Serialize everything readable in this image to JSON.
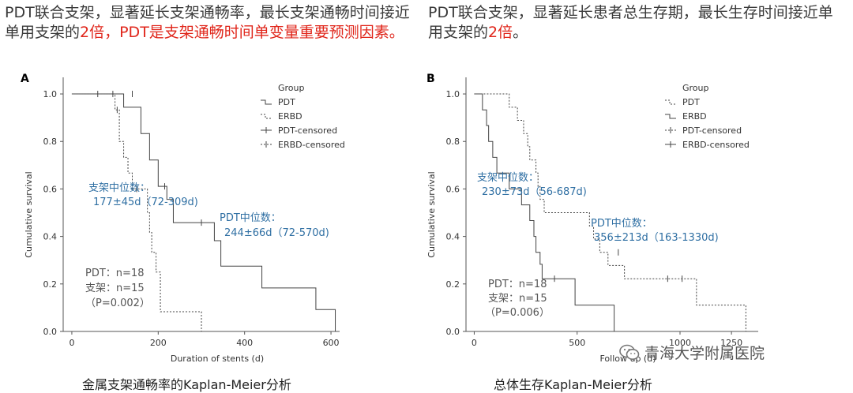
{
  "headline_left": {
    "part1": "PDT联合支架，显著延长支架通畅率，最长支架通畅时间接近单用支架的",
    "emph1": "2倍，PDT是支架通畅时间单变量重要预测因素。"
  },
  "headline_right": {
    "part1": "PDT联合支架，显著延长患者总生存期，最长生存时间接近单用支架的",
    "emph1": "2倍",
    "part2": "。"
  },
  "caption_left": "金属支架通畅率的Kaplan-Meier分析",
  "caption_right": "总体生存Kaplan-Meier分析",
  "watermark": "青海大学附属医院",
  "colors": {
    "red": "#e0261b",
    "annotation_blue": "#2f6fa3",
    "axis": "#555555"
  },
  "chart_data": [
    {
      "type": "line",
      "panel_label": "A",
      "xlabel": "Duration of stents (d)",
      "ylabel": "Cumulative survival",
      "xlim": [
        -20,
        620
      ],
      "ylim": [
        0,
        1.05
      ],
      "xticks": [
        0,
        200,
        400,
        600
      ],
      "yticks": [
        0.0,
        0.2,
        0.4,
        0.6,
        0.8,
        1.0
      ],
      "legend_title": "Group",
      "legend": [
        "PDT",
        "ERBD",
        "PDT-censored",
        "ERBD-censored"
      ],
      "series": [
        {
          "name": "PDT",
          "style": "solid",
          "steps": [
            [
              0,
              1.0
            ],
            [
              120,
              1.0
            ],
            [
              120,
              0.944
            ],
            [
              160,
              0.944
            ],
            [
              160,
              0.833
            ],
            [
              180,
              0.833
            ],
            [
              180,
              0.722
            ],
            [
              200,
              0.722
            ],
            [
              200,
              0.611
            ],
            [
              220,
              0.611
            ],
            [
              220,
              0.556
            ],
            [
              235,
              0.556
            ],
            [
              235,
              0.458
            ],
            [
              330,
              0.458
            ],
            [
              330,
              0.382
            ],
            [
              345,
              0.382
            ],
            [
              345,
              0.275
            ],
            [
              440,
              0.275
            ],
            [
              440,
              0.183
            ],
            [
              565,
              0.183
            ],
            [
              565,
              0.092
            ],
            [
              610,
              0.092
            ],
            [
              610,
              0.0
            ]
          ],
          "censored": [
            [
              60,
              1.0
            ],
            [
              95,
              1.0
            ],
            [
              140,
              1.0
            ],
            [
              215,
              0.611
            ],
            [
              300,
              0.458
            ]
          ]
        },
        {
          "name": "ERBD",
          "style": "dotted",
          "steps": [
            [
              0,
              1.0
            ],
            [
              100,
              1.0
            ],
            [
              100,
              0.933
            ],
            [
              110,
              0.933
            ],
            [
              110,
              0.8
            ],
            [
              120,
              0.8
            ],
            [
              120,
              0.733
            ],
            [
              130,
              0.733
            ],
            [
              130,
              0.667
            ],
            [
              140,
              0.667
            ],
            [
              140,
              0.6
            ],
            [
              175,
              0.6
            ],
            [
              175,
              0.5
            ],
            [
              180,
              0.5
            ],
            [
              180,
              0.417
            ],
            [
              185,
              0.417
            ],
            [
              185,
              0.333
            ],
            [
              195,
              0.333
            ],
            [
              195,
              0.25
            ],
            [
              205,
              0.25
            ],
            [
              205,
              0.083
            ],
            [
              300,
              0.083
            ],
            [
              300,
              0.0
            ]
          ],
          "censored": [
            [
              105,
              0.933
            ],
            [
              150,
              0.6
            ]
          ]
        }
      ],
      "annotations": {
        "erbd_median_title": "支架中位数：",
        "erbd_median_value": "177±45d（72-309d)",
        "pdt_median_title": "PDT中位数：",
        "pdt_median_value": "244±66d（72-570d)",
        "n_pdt": "PDT：n=18",
        "n_stent": "支架：n=15",
        "p_value": "（P=0.002）"
      }
    },
    {
      "type": "line",
      "panel_label": "B",
      "xlabel": "Follow up (d)",
      "ylabel": "Cumulative survival",
      "xlim": [
        -40,
        1380
      ],
      "ylim": [
        0,
        1.05
      ],
      "xticks": [
        0,
        500,
        1000,
        1250
      ],
      "xtick_labels": [
        "0",
        "500",
        "1000",
        "1250"
      ],
      "yticks": [
        0.0,
        0.2,
        0.4,
        0.6,
        0.8,
        1.0
      ],
      "legend_title": "Group",
      "legend": [
        "PDT",
        "ERBD",
        "PDT-censored",
        "ERBD-censored"
      ],
      "series": [
        {
          "name": "PDT",
          "style": "dotted",
          "steps": [
            [
              0,
              1.0
            ],
            [
              170,
              1.0
            ],
            [
              170,
              0.944
            ],
            [
              210,
              0.944
            ],
            [
              210,
              0.889
            ],
            [
              240,
              0.889
            ],
            [
              240,
              0.833
            ],
            [
              260,
              0.833
            ],
            [
              260,
              0.778
            ],
            [
              270,
              0.778
            ],
            [
              270,
              0.722
            ],
            [
              300,
              0.722
            ],
            [
              300,
              0.667
            ],
            [
              310,
              0.667
            ],
            [
              310,
              0.611
            ],
            [
              320,
              0.611
            ],
            [
              320,
              0.556
            ],
            [
              340,
              0.556
            ],
            [
              340,
              0.5
            ],
            [
              560,
              0.5
            ],
            [
              560,
              0.444
            ],
            [
              580,
              0.444
            ],
            [
              580,
              0.389
            ],
            [
              610,
              0.389
            ],
            [
              610,
              0.333
            ],
            [
              650,
              0.333
            ],
            [
              650,
              0.278
            ],
            [
              730,
              0.278
            ],
            [
              730,
              0.222
            ],
            [
              1080,
              0.222
            ],
            [
              1080,
              0.111
            ],
            [
              1320,
              0.111
            ],
            [
              1320,
              0.0
            ]
          ],
          "censored": [
            [
              700,
              0.333
            ],
            [
              940,
              0.222
            ],
            [
              1010,
              0.222
            ]
          ]
        },
        {
          "name": "ERBD",
          "style": "solid",
          "steps": [
            [
              0,
              1.0
            ],
            [
              40,
              1.0
            ],
            [
              40,
              0.933
            ],
            [
              60,
              0.933
            ],
            [
              60,
              0.867
            ],
            [
              70,
              0.867
            ],
            [
              70,
              0.8
            ],
            [
              90,
              0.8
            ],
            [
              90,
              0.733
            ],
            [
              110,
              0.733
            ],
            [
              110,
              0.667
            ],
            [
              170,
              0.667
            ],
            [
              170,
              0.6
            ],
            [
              230,
              0.6
            ],
            [
              230,
              0.533
            ],
            [
              270,
              0.533
            ],
            [
              270,
              0.467
            ],
            [
              290,
              0.467
            ],
            [
              290,
              0.4
            ],
            [
              300,
              0.4
            ],
            [
              300,
              0.333
            ],
            [
              320,
              0.333
            ],
            [
              320,
              0.283
            ],
            [
              330,
              0.283
            ],
            [
              330,
              0.222
            ],
            [
              490,
              0.222
            ],
            [
              490,
              0.111
            ],
            [
              680,
              0.111
            ],
            [
              680,
              0.0
            ]
          ],
          "censored": [
            [
              390,
              0.222
            ]
          ]
        }
      ],
      "annotations": {
        "erbd_median_title": "支架中位数：",
        "erbd_median_value": "230±73d（56-687d)",
        "pdt_median_title": "PDT中位数：",
        "pdt_median_value": "356±213d（163-1330d)",
        "n_pdt": "PDT：n=18",
        "n_stent": "支架：n=15",
        "p_value": "（P=0.006）"
      }
    }
  ]
}
